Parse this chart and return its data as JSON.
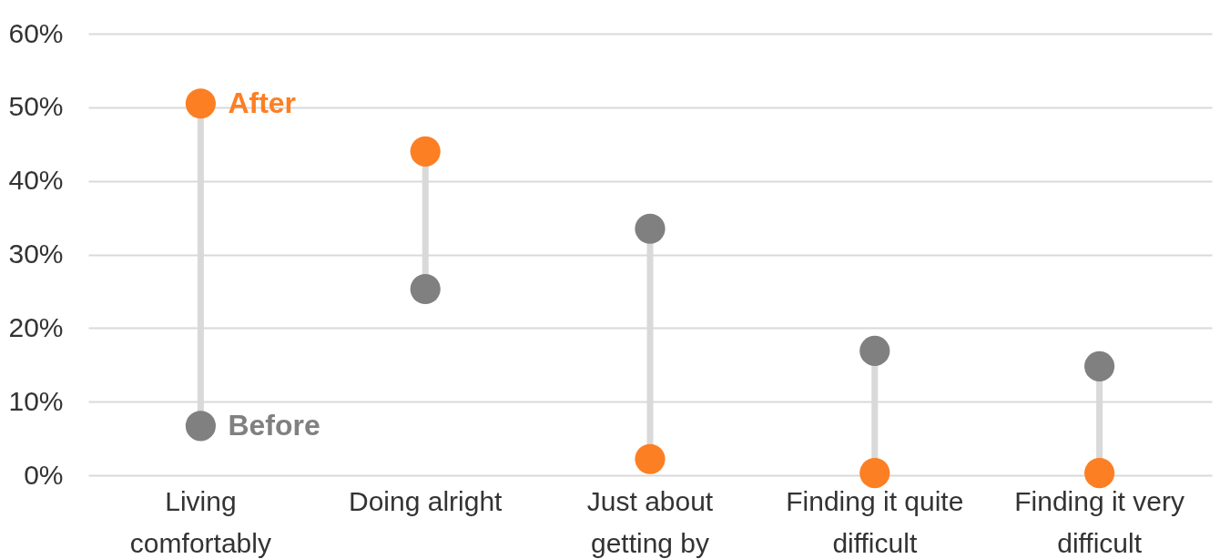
{
  "chart_data": {
    "type": "scatter",
    "categories": [
      "Living comfortably",
      "Doing alright",
      "Just about getting by",
      "Finding it quite difficult",
      "Finding it very difficult"
    ],
    "series": [
      {
        "name": "After",
        "color": "#fd7f23",
        "values": [
          50.5,
          44.0,
          2.2,
          0.3,
          0.3
        ]
      },
      {
        "name": "Before",
        "color": "#808080",
        "values": [
          6.7,
          25.3,
          33.5,
          16.9,
          14.8
        ]
      }
    ],
    "ylim": [
      0,
      60
    ],
    "yticks": [
      {
        "value": 0,
        "label": "0%"
      },
      {
        "value": 10,
        "label": "10%"
      },
      {
        "value": 20,
        "label": "20%"
      },
      {
        "value": 30,
        "label": "30%"
      },
      {
        "value": 40,
        "label": "40%"
      },
      {
        "value": 50,
        "label": "50%"
      },
      {
        "value": 60,
        "label": "60%"
      }
    ],
    "grid": "y",
    "legend": false,
    "marker": "circle"
  }
}
